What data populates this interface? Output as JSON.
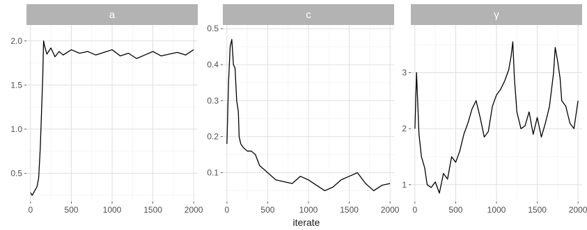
{
  "chart_data": {
    "type": "line",
    "xlabel": "iterate",
    "ylabel": "",
    "grid": true,
    "x_breaks": [
      0,
      500,
      1000,
      1500,
      2000
    ],
    "panels": [
      {
        "title": "a",
        "xlim": [
          -50,
          2050
        ],
        "ylim": [
          0.18,
          2.18
        ],
        "y_breaks": [
          0.5,
          1.0,
          1.5,
          2.0
        ],
        "y_tick_labels": [
          "0.5",
          "1.0",
          "1.5",
          "2.0"
        ],
        "series": [
          {
            "x": [
              0,
              20,
              50,
              80,
              100,
              120,
              135,
              150,
              160,
              170,
              200,
              250,
              300,
              350,
              400,
              500,
              600,
              700,
              800,
              900,
              1000,
              1100,
              1200,
              1300,
              1400,
              1500,
              1600,
              1700,
              1800,
              1900,
              2000
            ],
            "y": [
              0.28,
              0.25,
              0.3,
              0.35,
              0.45,
              0.8,
              1.2,
              1.6,
              2.0,
              1.95,
              1.85,
              1.92,
              1.82,
              1.88,
              1.84,
              1.9,
              1.86,
              1.88,
              1.84,
              1.87,
              1.9,
              1.83,
              1.86,
              1.8,
              1.84,
              1.88,
              1.83,
              1.85,
              1.87,
              1.84,
              1.9
            ]
          }
        ]
      },
      {
        "title": "c",
        "xlim": [
          -50,
          2050
        ],
        "ylim": [
          0.02,
          0.51
        ],
        "y_breaks": [
          0.1,
          0.2,
          0.3,
          0.4,
          0.5
        ],
        "y_tick_labels": [
          "0.1",
          "0.2",
          "0.3",
          "0.4",
          "0.5"
        ],
        "series": [
          {
            "x": [
              0,
              20,
              40,
              60,
              80,
              100,
              120,
              140,
              150,
              170,
              200,
              250,
              300,
              350,
              400,
              500,
              600,
              700,
              800,
              900,
              1000,
              1100,
              1200,
              1300,
              1400,
              1500,
              1600,
              1700,
              1800,
              1900,
              2000
            ],
            "y": [
              0.18,
              0.35,
              0.45,
              0.47,
              0.4,
              0.39,
              0.3,
              0.27,
              0.2,
              0.18,
              0.17,
              0.16,
              0.16,
              0.15,
              0.12,
              0.1,
              0.08,
              0.075,
              0.07,
              0.09,
              0.08,
              0.065,
              0.05,
              0.06,
              0.08,
              0.09,
              0.1,
              0.07,
              0.05,
              0.065,
              0.07
            ]
          }
        ]
      },
      {
        "title": "γ",
        "xlim": [
          -50,
          2050
        ],
        "ylim": [
          0.7,
          3.85
        ],
        "y_breaks": [
          1,
          2,
          3
        ],
        "y_tick_labels": [
          "1",
          "2",
          "3"
        ],
        "series": [
          {
            "x": [
              0,
              20,
              50,
              80,
              120,
              150,
              200,
              250,
              300,
              350,
              400,
              450,
              500,
              550,
              600,
              650,
              700,
              750,
              800,
              850,
              900,
              950,
              1000,
              1050,
              1100,
              1150,
              1180,
              1200,
              1220,
              1250,
              1300,
              1350,
              1400,
              1450,
              1500,
              1550,
              1600,
              1650,
              1700,
              1720,
              1750,
              1780,
              1800,
              1850,
              1900,
              1950,
              2000
            ],
            "y": [
              2.0,
              3.0,
              1.9,
              1.5,
              1.3,
              1.0,
              0.95,
              1.05,
              0.85,
              1.2,
              1.1,
              1.5,
              1.4,
              1.6,
              1.9,
              2.1,
              2.35,
              2.5,
              2.2,
              1.85,
              1.95,
              2.4,
              2.6,
              2.7,
              2.85,
              3.05,
              3.3,
              3.55,
              2.9,
              2.3,
              2.0,
              2.05,
              2.3,
              1.9,
              2.2,
              1.85,
              2.1,
              2.4,
              3.0,
              3.45,
              3.2,
              2.9,
              2.5,
              2.4,
              2.1,
              2.0,
              2.5
            ]
          }
        ]
      }
    ]
  }
}
